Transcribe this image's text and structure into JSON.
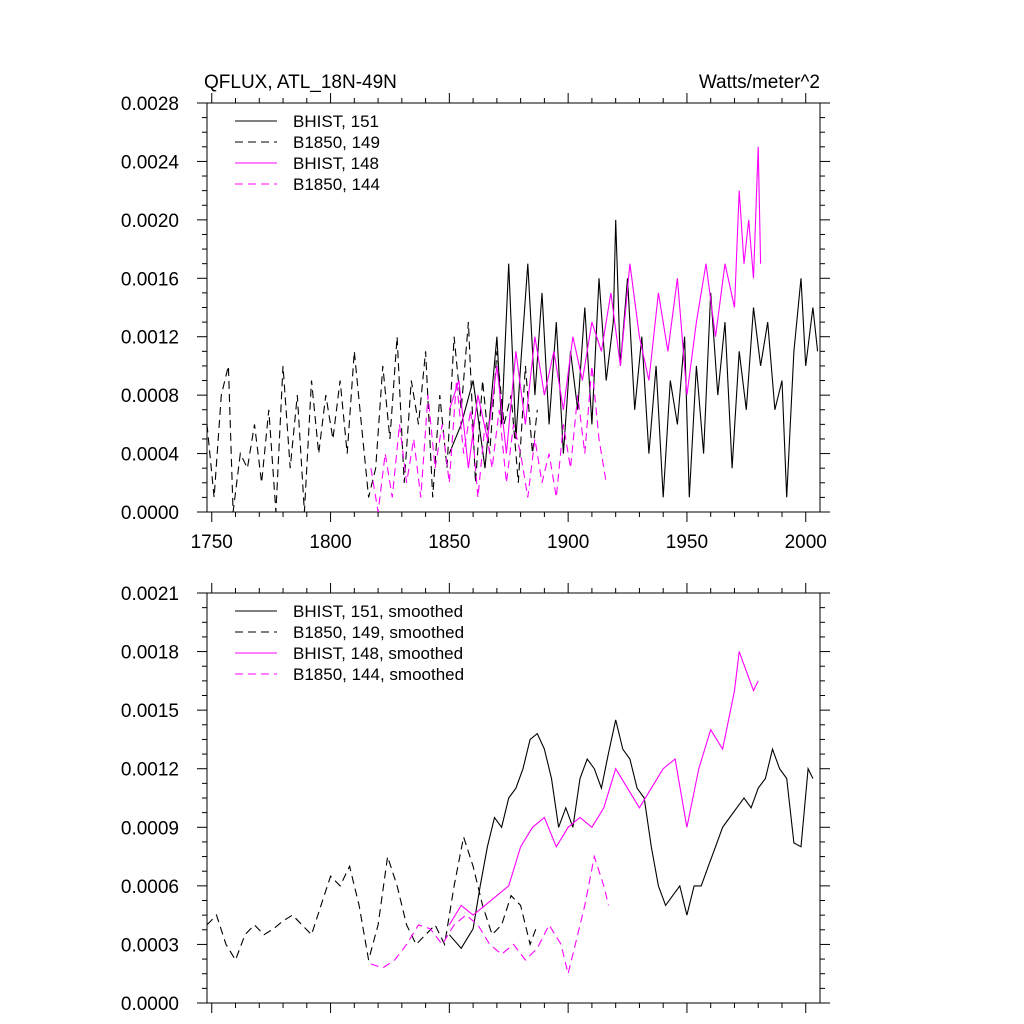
{
  "chart_data": [
    {
      "type": "line",
      "title_left": "QFLUX, ATL_18N-49N",
      "title_right": "Watts/meter^2",
      "xlim": [
        1748,
        2006
      ],
      "ylim": [
        0,
        0.0028
      ],
      "xticks": [
        1750,
        1800,
        1850,
        1900,
        1950,
        2000
      ],
      "xtick_labels": [
        "1750",
        "1800",
        "1850",
        "1900",
        "1950",
        "2000"
      ],
      "yticks": [
        0,
        0.0004,
        0.0008,
        0.0012,
        0.0016,
        0.002,
        0.0024,
        0.0028
      ],
      "ytick_labels": [
        "0.0000",
        "0.0004",
        "0.0008",
        "0.0012",
        "0.0016",
        "0.0020",
        "0.0024",
        "0.0028"
      ],
      "legend_position": "top-left",
      "series": [
        {
          "name": "BHIST, 151",
          "color": "#000000",
          "dash": "solid",
          "x": [
            1850,
            1855,
            1860,
            1865,
            1870,
            1872,
            1875,
            1878,
            1880,
            1883,
            1886,
            1889,
            1892,
            1895,
            1898,
            1901,
            1904,
            1907,
            1910,
            1913,
            1916,
            1919,
            1920,
            1922,
            1925,
            1928,
            1931,
            1934,
            1937,
            1940,
            1943,
            1946,
            1949,
            1951,
            1954,
            1957,
            1960,
            1963,
            1966,
            1969,
            1972,
            1975,
            1978,
            1981,
            1984,
            1987,
            1990,
            1992,
            1995,
            1998,
            2000,
            2003,
            2005
          ],
          "y": [
            0.0004,
            0.0006,
            0.0009,
            0.0003,
            0.0012,
            0.0006,
            0.0017,
            0.0005,
            0.001,
            0.0017,
            0.0008,
            0.0015,
            0.0006,
            0.0013,
            0.0004,
            0.0011,
            0.0007,
            0.0014,
            0.0006,
            0.0016,
            0.0009,
            0.0013,
            0.002,
            0.001,
            0.0016,
            0.0007,
            0.0012,
            0.0004,
            0.001,
            0.0001,
            0.0009,
            0.0006,
            0.0012,
            0.0001,
            0.001,
            0.0004,
            0.0015,
            0.0008,
            0.0013,
            0.0003,
            0.0011,
            0.0007,
            0.0014,
            0.001,
            0.0013,
            0.0007,
            0.0009,
            0.0001,
            0.0011,
            0.0016,
            0.001,
            0.0014,
            0.0011
          ]
        },
        {
          "name": "B1850, 149",
          "color": "#000000",
          "dash": "dashed",
          "x": [
            1748,
            1751,
            1754,
            1757,
            1759,
            1762,
            1765,
            1768,
            1771,
            1774,
            1777,
            1780,
            1783,
            1786,
            1789,
            1792,
            1795,
            1798,
            1801,
            1804,
            1807,
            1810,
            1813,
            1816,
            1819,
            1822,
            1825,
            1828,
            1831,
            1834,
            1837,
            1840,
            1843,
            1846,
            1849,
            1852,
            1855,
            1858,
            1861,
            1864,
            1867,
            1870,
            1873,
            1876,
            1879,
            1882,
            1885,
            1887
          ],
          "y": [
            0.0006,
            0.0001,
            0.0008,
            0.001,
            0.0,
            0.0004,
            0.0003,
            0.0006,
            0.0002,
            0.0007,
            0.0,
            0.001,
            0.0003,
            0.0008,
            0.0,
            0.0009,
            0.0004,
            0.0008,
            0.0005,
            0.0009,
            0.0004,
            0.0011,
            0.0006,
            0.0001,
            0.0003,
            0.001,
            0.0005,
            0.0012,
            0.0002,
            0.0009,
            0.0006,
            0.0011,
            0.0001,
            0.0008,
            0.0003,
            0.0012,
            0.0007,
            0.0013,
            0.0002,
            0.0009,
            0.0004,
            0.0011,
            0.0006,
            0.0008,
            0.0002,
            0.001,
            0.0004,
            0.0007
          ]
        },
        {
          "name": "BHIST, 148",
          "color": "#ff00ff",
          "dash": "solid",
          "x": [
            1850,
            1854,
            1858,
            1862,
            1866,
            1870,
            1874,
            1878,
            1882,
            1886,
            1890,
            1894,
            1898,
            1902,
            1906,
            1910,
            1914,
            1918,
            1922,
            1926,
            1930,
            1934,
            1938,
            1942,
            1946,
            1950,
            1954,
            1958,
            1962,
            1966,
            1970,
            1972,
            1974,
            1976,
            1978,
            1980,
            1981
          ],
          "y": [
            0.0007,
            0.0009,
            0.0003,
            0.0008,
            0.0005,
            0.001,
            0.0004,
            0.0011,
            0.0006,
            0.0012,
            0.0008,
            0.0011,
            0.0007,
            0.0012,
            0.0009,
            0.0013,
            0.0011,
            0.0015,
            0.001,
            0.0017,
            0.0012,
            0.0009,
            0.0015,
            0.0011,
            0.0016,
            0.0008,
            0.0013,
            0.0017,
            0.0012,
            0.0017,
            0.0014,
            0.0022,
            0.0017,
            0.002,
            0.0016,
            0.0025,
            0.0017
          ]
        },
        {
          "name": "B1850, 144",
          "color": "#ff00ff",
          "dash": "dashed",
          "x": [
            1817,
            1820,
            1823,
            1826,
            1829,
            1832,
            1835,
            1838,
            1841,
            1844,
            1847,
            1850,
            1853,
            1856,
            1859,
            1862,
            1865,
            1868,
            1871,
            1874,
            1877,
            1880,
            1883,
            1886,
            1889,
            1892,
            1895,
            1898,
            1901,
            1904,
            1907,
            1910,
            1913,
            1916
          ],
          "y": [
            0.0003,
            0.0,
            0.0004,
            0.0001,
            0.0006,
            0.0002,
            0.0005,
            0.0001,
            0.0008,
            0.0003,
            0.0006,
            0.0002,
            0.0009,
            0.0004,
            0.0007,
            0.0001,
            0.0006,
            0.0003,
            0.0007,
            0.0002,
            0.0006,
            0.0004,
            0.0001,
            0.0005,
            0.0002,
            0.0004,
            0.0001,
            0.0006,
            0.0003,
            0.0008,
            0.0004,
            0.001,
            0.0005,
            0.0002
          ]
        }
      ]
    },
    {
      "type": "line",
      "xlim": [
        1748,
        2006
      ],
      "ylim": [
        0,
        0.0021
      ],
      "xticks": [
        1750,
        1800,
        1850,
        1900,
        1950,
        2000
      ],
      "yticks": [
        0,
        0.0003,
        0.0006,
        0.0009,
        0.0012,
        0.0015,
        0.0018,
        0.0021
      ],
      "ytick_labels": [
        "0.0000",
        "0.0003",
        "0.0006",
        "0.0009",
        "0.0012",
        "0.0015",
        "0.0018",
        "0.0021"
      ],
      "legend_position": "top-left",
      "series": [
        {
          "name": "BHIST, 151, smoothed",
          "color": "#000000",
          "dash": "solid",
          "x": [
            1850,
            1855,
            1860,
            1863,
            1866,
            1869,
            1872,
            1875,
            1878,
            1881,
            1884,
            1887,
            1890,
            1893,
            1896,
            1899,
            1902,
            1905,
            1908,
            1911,
            1914,
            1917,
            1920,
            1923,
            1926,
            1929,
            1932,
            1935,
            1938,
            1941,
            1944,
            1947,
            1950,
            1953,
            1956,
            1959,
            1962,
            1965,
            1968,
            1971,
            1974,
            1977,
            1980,
            1983,
            1986,
            1989,
            1992,
            1995,
            1998,
            2001,
            2003
          ],
          "y": [
            0.00035,
            0.00028,
            0.00038,
            0.0006,
            0.0008,
            0.00095,
            0.0009,
            0.00105,
            0.0011,
            0.0012,
            0.00135,
            0.00138,
            0.0013,
            0.00115,
            0.0009,
            0.001,
            0.0009,
            0.00115,
            0.00125,
            0.0012,
            0.0011,
            0.00128,
            0.00145,
            0.0013,
            0.00125,
            0.0011,
            0.00105,
            0.0008,
            0.0006,
            0.0005,
            0.00055,
            0.0006,
            0.00045,
            0.0006,
            0.0006,
            0.0007,
            0.0008,
            0.0009,
            0.00095,
            0.001,
            0.00105,
            0.001,
            0.0011,
            0.00115,
            0.0013,
            0.0012,
            0.00115,
            0.00082,
            0.0008,
            0.0012,
            0.00115
          ]
        },
        {
          "name": "B1850, 149, smoothed",
          "color": "#000000",
          "dash": "dashed",
          "x": [
            1748,
            1752,
            1756,
            1760,
            1764,
            1768,
            1772,
            1776,
            1780,
            1784,
            1788,
            1792,
            1796,
            1800,
            1804,
            1808,
            1812,
            1816,
            1820,
            1824,
            1828,
            1832,
            1836,
            1840,
            1844,
            1848,
            1852,
            1856,
            1860,
            1864,
            1868,
            1872,
            1876,
            1880,
            1884,
            1887
          ],
          "y": [
            0.0004,
            0.00045,
            0.0003,
            0.00022,
            0.00035,
            0.0004,
            0.00035,
            0.00038,
            0.00042,
            0.00045,
            0.0004,
            0.00035,
            0.0005,
            0.00065,
            0.0006,
            0.0007,
            0.0005,
            0.00022,
            0.0004,
            0.00075,
            0.0006,
            0.0004,
            0.0003,
            0.00035,
            0.0004,
            0.0003,
            0.0006,
            0.00085,
            0.0007,
            0.0005,
            0.00035,
            0.0004,
            0.00055,
            0.0005,
            0.0003,
            0.0004
          ]
        },
        {
          "name": "BHIST, 148, smoothed",
          "color": "#ff00ff",
          "dash": "solid",
          "x": [
            1850,
            1855,
            1860,
            1865,
            1870,
            1875,
            1880,
            1885,
            1890,
            1895,
            1900,
            1905,
            1910,
            1915,
            1920,
            1925,
            1930,
            1935,
            1940,
            1945,
            1950,
            1955,
            1960,
            1965,
            1970,
            1972,
            1975,
            1978,
            1980
          ],
          "y": [
            0.0004,
            0.0005,
            0.00045,
            0.0005,
            0.00055,
            0.0006,
            0.0008,
            0.0009,
            0.00095,
            0.0008,
            0.0009,
            0.00095,
            0.0009,
            0.001,
            0.0012,
            0.0011,
            0.001,
            0.0011,
            0.0012,
            0.00125,
            0.0009,
            0.0012,
            0.0014,
            0.0013,
            0.0016,
            0.0018,
            0.0017,
            0.0016,
            0.00165
          ]
        },
        {
          "name": "B1850, 144, smoothed",
          "color": "#ff00ff",
          "dash": "dashed",
          "x": [
            1817,
            1822,
            1827,
            1832,
            1837,
            1842,
            1847,
            1852,
            1857,
            1862,
            1867,
            1872,
            1877,
            1882,
            1887,
            1892,
            1897,
            1900,
            1903,
            1907,
            1911,
            1915,
            1917
          ],
          "y": [
            0.0002,
            0.00018,
            0.00022,
            0.0003,
            0.0004,
            0.00038,
            0.0003,
            0.0004,
            0.00045,
            0.0004,
            0.0003,
            0.00025,
            0.0003,
            0.00022,
            0.00028,
            0.0004,
            0.0003,
            0.00015,
            0.0003,
            0.0005,
            0.00075,
            0.0006,
            0.0005
          ]
        }
      ]
    }
  ]
}
